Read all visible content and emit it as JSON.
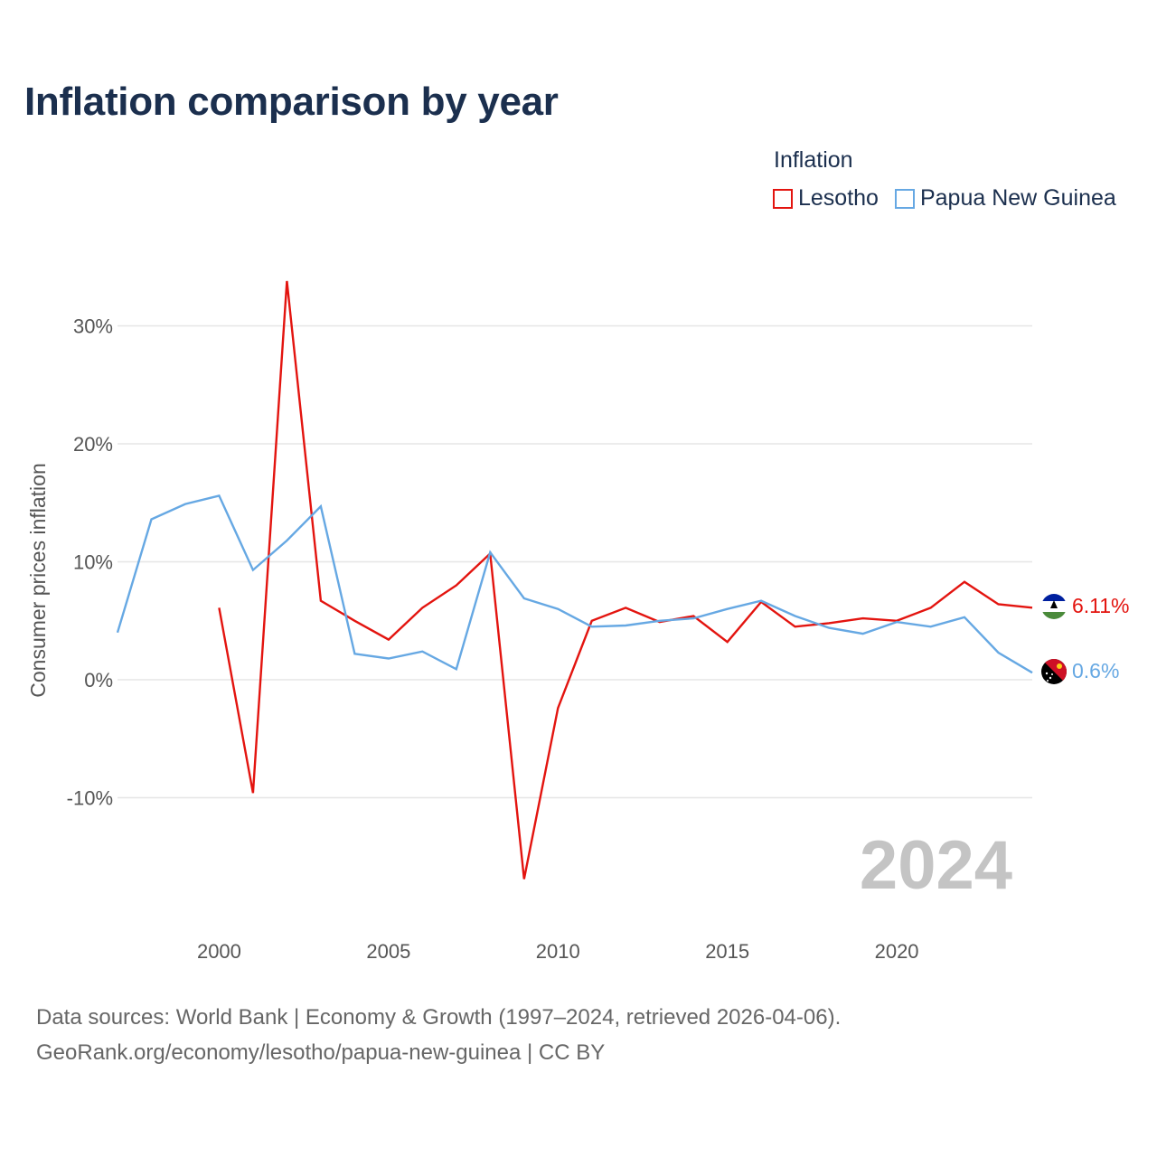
{
  "title": "Inflation comparison by year",
  "legend": {
    "title": "Inflation",
    "items": [
      {
        "label": "Lesotho",
        "color": "#e3140f"
      },
      {
        "label": "Papua New Guinea",
        "color": "#66a8e3"
      }
    ]
  },
  "footer": {
    "line1": "Data sources: World Bank | Economy & Growth (1997–2024, retrieved 2026-04-06).",
    "line2": "GeoRank.org/economy/lesotho/papua-new-guinea | CC BY"
  },
  "chart_data": {
    "type": "line",
    "title": "Inflation comparison by year",
    "xlabel": "",
    "ylabel": "Consumer prices inflation",
    "xlim": [
      1997,
      2024
    ],
    "ylim": [
      -20,
      35
    ],
    "x_ticks": [
      2000,
      2005,
      2010,
      2015,
      2020
    ],
    "x_tick_labels": [
      "2000",
      "2005",
      "2010",
      "2015",
      "2020"
    ],
    "y_ticks": [
      -10,
      0,
      10,
      20,
      30
    ],
    "y_tick_labels": [
      "-10%",
      "0%",
      "10%",
      "20%",
      "30%"
    ],
    "grid": true,
    "year_label": "2024",
    "series": [
      {
        "name": "Lesotho",
        "color": "#e3140f",
        "end_label": "6.11%",
        "flag": "lesotho-flag-icon",
        "x": [
          2000,
          2001,
          2002,
          2003,
          2004,
          2005,
          2006,
          2007,
          2008,
          2009,
          2010,
          2011,
          2012,
          2013,
          2014,
          2015,
          2016,
          2017,
          2018,
          2019,
          2020,
          2021,
          2022,
          2023,
          2024
        ],
        "values": [
          6.1,
          -9.6,
          33.8,
          6.7,
          5.0,
          3.4,
          6.1,
          8.0,
          10.7,
          -16.9,
          -2.4,
          5.0,
          6.1,
          4.9,
          5.4,
          3.2,
          6.6,
          4.5,
          4.8,
          5.2,
          5.0,
          6.1,
          8.3,
          6.4,
          6.11
        ]
      },
      {
        "name": "Papua New Guinea",
        "color": "#66a8e3",
        "end_label": "0.6%",
        "flag": "papua-new-guinea-flag-icon",
        "x": [
          1997,
          1998,
          1999,
          2000,
          2001,
          2002,
          2003,
          2004,
          2005,
          2006,
          2007,
          2008,
          2009,
          2010,
          2011,
          2012,
          2013,
          2014,
          2015,
          2016,
          2017,
          2018,
          2019,
          2020,
          2021,
          2022,
          2023,
          2024
        ],
        "values": [
          4.0,
          13.6,
          14.9,
          15.6,
          9.3,
          11.8,
          14.7,
          2.2,
          1.8,
          2.4,
          0.9,
          10.8,
          6.9,
          6.0,
          4.5,
          4.6,
          5.0,
          5.2,
          6.0,
          6.7,
          5.4,
          4.4,
          3.9,
          4.9,
          4.5,
          5.3,
          2.3,
          0.6
        ]
      }
    ]
  }
}
